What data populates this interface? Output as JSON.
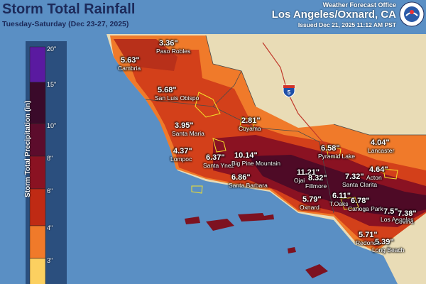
{
  "header": {
    "title": "Storm Total Rainfall",
    "subtitle": "Tuesday-Saturday (Dec 23-27, 2025)",
    "office": "Weather Forecast Office",
    "city": "Los Angeles/Oxnard, CA",
    "issued": "Issued Dec 21, 2025 11:12 AM PST",
    "logo_icon": "noaa-weather-logo-icon"
  },
  "legend": {
    "title": "Storm Total Precipitation (in)",
    "ticks": [
      "20\"",
      "15\"",
      "10\"",
      "8\"",
      "6\"",
      "4\"",
      "3\""
    ],
    "colors": [
      "#5a1aa0",
      "#3a0a2a",
      "#5c0c2c",
      "#8a1222",
      "#bf2a14",
      "#f07a2a",
      "#fcd060"
    ]
  },
  "highway_shield": "5",
  "amounts": [
    {
      "value": "3.36\"",
      "place": "Paso Robles"
    },
    {
      "value": "5.63\"",
      "place": "Cambria"
    },
    {
      "value": "5.68\"",
      "place": "San Luis Obispo"
    },
    {
      "value": "2.81\"",
      "place": "Cuyama"
    },
    {
      "value": "3.95\"",
      "place": "Santa Maria"
    },
    {
      "value": "4.37\"",
      "place": "Lompoc"
    },
    {
      "value": "6.37\"",
      "place": "Santa Ynez"
    },
    {
      "value": "10.14\"",
      "place": "Big Pine Mountain"
    },
    {
      "value": "6.86\"",
      "place": "Santa Barbara"
    },
    {
      "value": "11.21\"",
      "place": "Ojai"
    },
    {
      "value": "6.58\"",
      "place": "Pyramid Lake"
    },
    {
      "value": "4.04\"",
      "place": "Lancaster"
    },
    {
      "value": "8.32\"",
      "place": "Fillmore"
    },
    {
      "value": "7.32\"",
      "place": "Santa Clarita"
    },
    {
      "value": "4.64\"",
      "place": "Acton"
    },
    {
      "value": "5.79\"",
      "place": "Oxnard"
    },
    {
      "value": "6.11\"",
      "place": "T.Oaks"
    },
    {
      "value": "6.78\"",
      "place": "Canoga Park"
    },
    {
      "value": "7.5\"",
      "place": "Los Angeles"
    },
    {
      "value": "7.38\"",
      "place": "Covina"
    },
    {
      "value": "5.71\"",
      "place": "Redondo"
    },
    {
      "value": "5.39\"",
      "place": "Long Beach"
    }
  ]
}
